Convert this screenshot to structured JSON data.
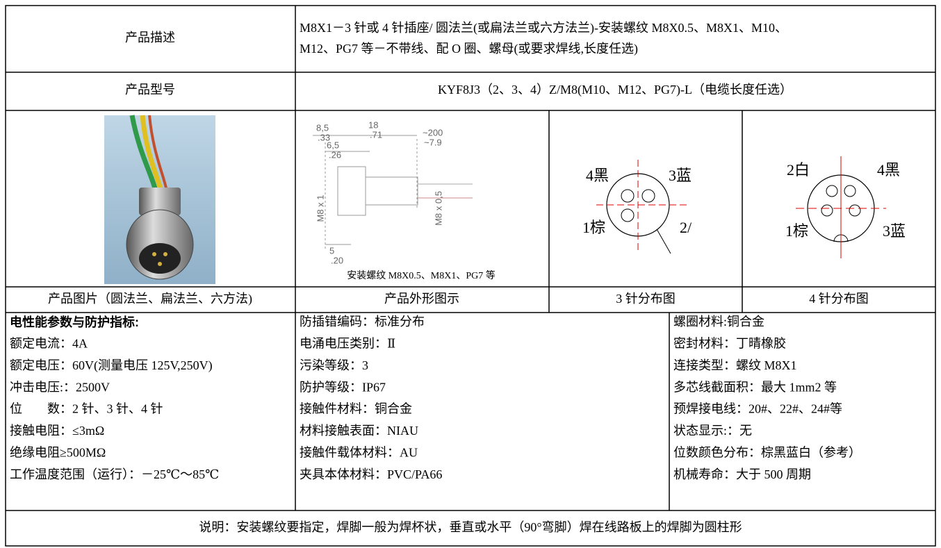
{
  "table": {
    "description": {
      "label": "产品描述",
      "lines": [
        "M8X1－3 针或 4 针插座/ 圆法兰(或扁法兰或六方法兰)-安装螺纹 M8X0.5、M8X1、M10、",
        "M12、PG7 等－不带线、配 O 圈、螺母(或要求焊线,长度任选)"
      ]
    },
    "model": {
      "label": "产品型号",
      "value": "KYF8J3（2、3、4）Z/M8(M10、M12、PG7)-L（电缆长度任选）"
    },
    "drawing": {
      "dims": [
        "8,5",
        ".33",
        "18",
        ".71",
        "~200",
        "~7.9",
        "6,5",
        ".26",
        "M8 x 1",
        "M8 x 0,5",
        "5",
        ".20"
      ],
      "caption": "安装螺纹 M8X0.5、M8X1、PG7 等"
    },
    "pins3": [
      "4黑",
      "3蓝",
      "1棕",
      "2/"
    ],
    "pins4": [
      "2白",
      "4黑",
      "1棕",
      "3蓝"
    ],
    "captions": [
      "产品图片（圆法兰、扁法兰、六方法)",
      "产品外形图示",
      "3 针分布图",
      "4 针分布图"
    ],
    "specs": {
      "heading": "电性能参数与防护指标:",
      "col1": [
        "额定电流：4A",
        "额定电压：60V(测量电压 125V,250V)",
        "冲击电压:：2500V",
        "位　　数：2 针、3 针、4 针",
        "接触电阻：≤3mΩ",
        "绝缘电阻≥500MΩ",
        "工作温度范围（运行）：－25℃～85℃"
      ],
      "col2": [
        "防插错编码：标准分布",
        "电涌电压类别：Ⅱ",
        "污染等级：3",
        "防护等级：IP67",
        "接触件材料：铜合金",
        "材料接触表面：NIAU",
        "接触件载体材料：AU",
        "夹具本体材料：PVC/PA66"
      ],
      "col3": [
        "螺圈材料:铜合金",
        "密封材料：丁晴橡胶",
        "连接类型：螺纹 M8X1",
        "多芯线截面积：最大 1mm2 等",
        "预焊接电线：20#、22#、24#等",
        "状态显示:：无",
        "位数颜色分布：棕黑蓝白（参考）",
        "机械寿命：大于 500 周期"
      ]
    },
    "note": "说明：安装螺纹要指定，焊脚一般为焊杯状，垂直或水平（90°弯脚）焊在线路板上的焊脚为圆柱形"
  }
}
